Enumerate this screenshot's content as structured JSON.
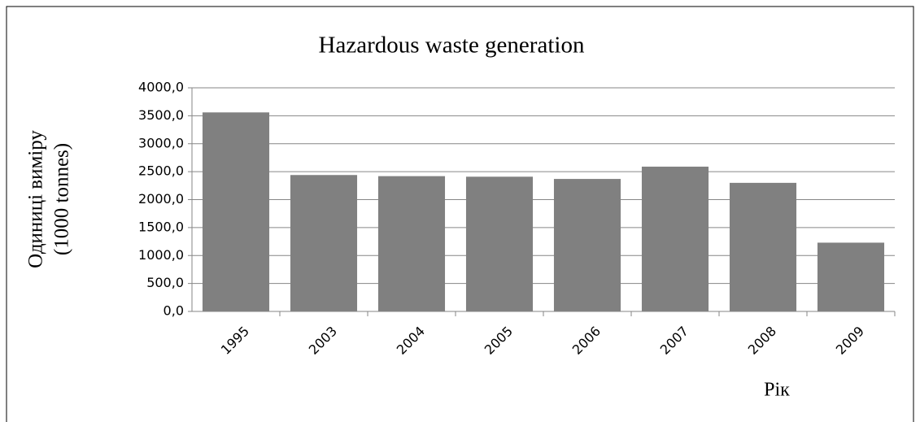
{
  "chart_data": {
    "type": "bar",
    "title": "Hazardous waste generation",
    "ylabel": [
      "Одиниці виміру",
      "(1000 tonnes)"
    ],
    "xlabel": "Рік",
    "categories": [
      "1995",
      "2003",
      "2004",
      "2005",
      "2006",
      "2007",
      "2008",
      "2009"
    ],
    "values": [
      3560,
      2440,
      2420,
      2410,
      2370,
      2590,
      2300,
      1230
    ],
    "color": "#808080",
    "ylim": [
      0,
      4000
    ],
    "yticks": [
      {
        "value": 0,
        "label": "0,0"
      },
      {
        "value": 500,
        "label": "500,0"
      },
      {
        "value": 1000,
        "label": "1000,0"
      },
      {
        "value": 1500,
        "label": "1500,0"
      },
      {
        "value": 2000,
        "label": "2000,0"
      },
      {
        "value": 2500,
        "label": "2500,0"
      },
      {
        "value": 3000,
        "label": "3000,0"
      },
      {
        "value": 3500,
        "label": "3500,0"
      },
      {
        "value": 4000,
        "label": "4000,0"
      }
    ],
    "grid": true
  }
}
